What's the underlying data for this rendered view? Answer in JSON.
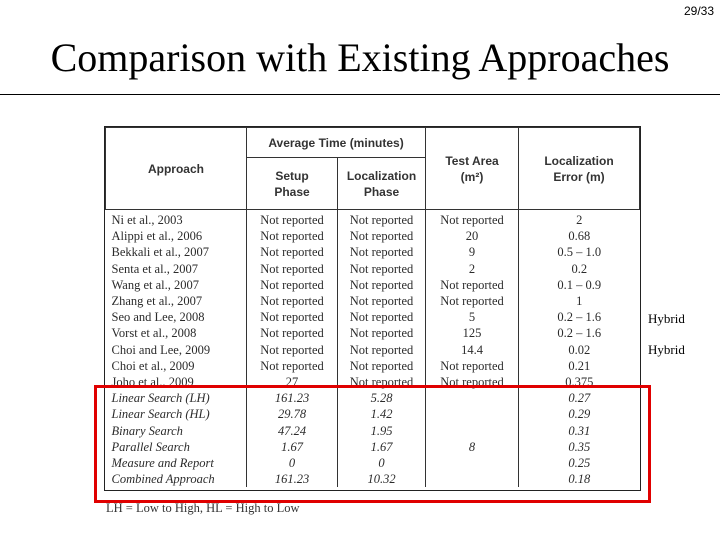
{
  "slide": {
    "page_number": "29/33",
    "title": "Comparison with Existing Approaches"
  },
  "table": {
    "headers": {
      "approach": "Approach",
      "average_time": "Average Time (minutes)",
      "setup_phase": "Setup Phase",
      "localization_phase": "Localization Phase",
      "test_area": "Test Area (m²)",
      "localization_error": "Localization Error (m)"
    },
    "rows": [
      [
        "Ni et al., 2003",
        "Not reported",
        "Not reported",
        "Not reported",
        "2"
      ],
      [
        "Alippi et al., 2006",
        "Not reported",
        "Not reported",
        "20",
        "0.68"
      ],
      [
        "Bekkali et al., 2007",
        "Not reported",
        "Not reported",
        "9",
        "0.5 – 1.0"
      ],
      [
        "Senta et al., 2007",
        "Not reported",
        "Not reported",
        "2",
        "0.2"
      ],
      [
        "Wang et al., 2007",
        "Not reported",
        "Not reported",
        "Not reported",
        "0.1 – 0.9"
      ],
      [
        "Zhang et al., 2007",
        "Not reported",
        "Not reported",
        "Not reported",
        "1"
      ],
      [
        "Seo and Lee, 2008",
        "Not reported",
        "Not reported",
        "5",
        "0.2 – 1.6"
      ],
      [
        "Vorst et al., 2008",
        "Not reported",
        "Not reported",
        "125",
        "0.2 – 1.6"
      ],
      [
        "Choi and Lee, 2009",
        "Not reported",
        "Not reported",
        "14.4",
        "0.02"
      ],
      [
        "Choi et al., 2009",
        "Not reported",
        "Not reported",
        "Not reported",
        "0.21"
      ],
      [
        "Joho et al., 2009",
        "27",
        "Not reported",
        "Not reported",
        "0.375"
      ],
      [
        "Linear Search (LH)",
        "161.23",
        "5.28",
        "",
        "0.27"
      ],
      [
        "Linear Search (HL)",
        "29.78",
        "1.42",
        "",
        "0.29"
      ],
      [
        "Binary Search",
        "47.24",
        "1.95",
        "",
        "0.31"
      ],
      [
        "Parallel Search",
        "1.67",
        "1.67",
        "8",
        "0.35"
      ],
      [
        "Measure and Report",
        "0",
        "0",
        "",
        "0.25"
      ],
      [
        "Combined Approach",
        "161.23",
        "10.32",
        "",
        "0.18"
      ]
    ]
  },
  "side_notes": [
    "Hybrid",
    "Hybrid"
  ],
  "footnote": "LH = Low to High, HL = High to Low",
  "colors": {
    "highlight_box": "#e00000",
    "table_text": "#2b2b2b"
  }
}
